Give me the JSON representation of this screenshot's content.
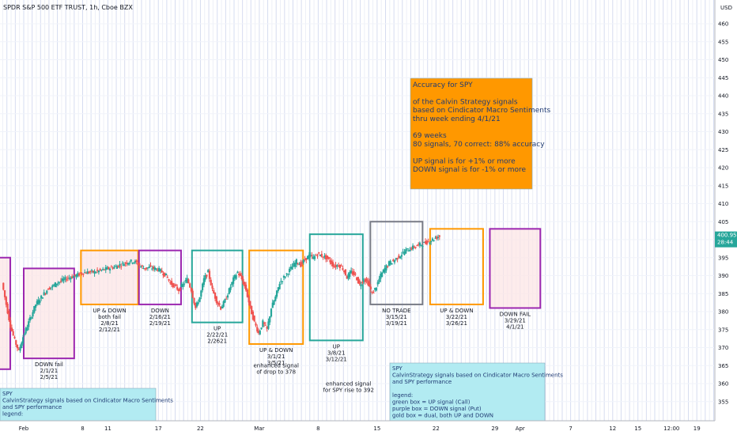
{
  "header": {
    "title": "SPDR S&P 500 ETF TRUST, 1h, Cboe BZX"
  },
  "chart_data": {
    "type": "candlestick",
    "currency": "USD",
    "ylim": [
      350,
      468
    ],
    "price_ticks": [
      355,
      360,
      365,
      370,
      375,
      380,
      385,
      390,
      395,
      400,
      405,
      410,
      415,
      420,
      425,
      430,
      435,
      440,
      445,
      450,
      455,
      460
    ],
    "last_price": "400.95",
    "countdown": "28:44",
    "time_axis": [
      {
        "label": "Feb",
        "day": 0
      },
      {
        "label": "8",
        "day": 7
      },
      {
        "label": "11",
        "day": 10
      },
      {
        "label": "17",
        "day": 16
      },
      {
        "label": "22",
        "day": 21
      },
      {
        "label": "Mar",
        "day": 28
      },
      {
        "label": "8",
        "day": 35
      },
      {
        "label": "15",
        "day": 42
      },
      {
        "label": "22",
        "day": 49
      },
      {
        "label": "29",
        "day": 56
      },
      {
        "label": "Apr",
        "day": 59
      },
      {
        "label": "7",
        "day": 65
      },
      {
        "label": "12",
        "day": 70
      },
      {
        "label": "15",
        "day": 73
      },
      {
        "label": "12:00",
        "day": 77
      },
      {
        "label": "19",
        "day": 80
      }
    ],
    "price_path": [
      {
        "day": -2.5,
        "price": 388
      },
      {
        "day": -2,
        "price": 382
      },
      {
        "day": -1.5,
        "price": 376
      },
      {
        "day": -1,
        "price": 372
      },
      {
        "day": -0.5,
        "price": 369
      },
      {
        "day": 0,
        "price": 373
      },
      {
        "day": 0.5,
        "price": 376
      },
      {
        "day": 1,
        "price": 379
      },
      {
        "day": 1.5,
        "price": 382
      },
      {
        "day": 2,
        "price": 383.5
      },
      {
        "day": 2.5,
        "price": 385
      },
      {
        "day": 3,
        "price": 386.5
      },
      {
        "day": 3.5,
        "price": 387
      },
      {
        "day": 4,
        "price": 388
      },
      {
        "day": 4.5,
        "price": 388.5
      },
      {
        "day": 5,
        "price": 389
      },
      {
        "day": 5.5,
        "price": 389.5
      },
      {
        "day": 6,
        "price": 389.8
      },
      {
        "day": 6.5,
        "price": 390.2
      },
      {
        "day": 7,
        "price": 390.8
      },
      {
        "day": 7.5,
        "price": 390.9
      },
      {
        "day": 8,
        "price": 391
      },
      {
        "day": 8.5,
        "price": 391
      },
      {
        "day": 9,
        "price": 391.3
      },
      {
        "day": 9.5,
        "price": 391.6
      },
      {
        "day": 10,
        "price": 391.9
      },
      {
        "day": 10.5,
        "price": 392.2
      },
      {
        "day": 11,
        "price": 392.5
      },
      {
        "day": 11.5,
        "price": 393
      },
      {
        "day": 12,
        "price": 393.4
      },
      {
        "day": 12.5,
        "price": 393.8
      },
      {
        "day": 13,
        "price": 394
      },
      {
        "day": 13.5,
        "price": 393.6
      },
      {
        "day": 14,
        "price": 392.5
      },
      {
        "day": 14.5,
        "price": 392
      },
      {
        "day": 15,
        "price": 392.3
      },
      {
        "day": 15.5,
        "price": 392
      },
      {
        "day": 16,
        "price": 391.8
      },
      {
        "day": 16.5,
        "price": 391
      },
      {
        "day": 17,
        "price": 390
      },
      {
        "day": 17.5,
        "price": 388
      },
      {
        "day": 18,
        "price": 387
      },
      {
        "day": 18.5,
        "price": 386
      },
      {
        "day": 19,
        "price": 387.5
      },
      {
        "day": 19.5,
        "price": 389
      },
      {
        "day": 20,
        "price": 386
      },
      {
        "day": 20.5,
        "price": 381
      },
      {
        "day": 21,
        "price": 384
      },
      {
        "day": 21.5,
        "price": 389
      },
      {
        "day": 22,
        "price": 391
      },
      {
        "day": 22.5,
        "price": 386
      },
      {
        "day": 23,
        "price": 383
      },
      {
        "day": 23.5,
        "price": 381
      },
      {
        "day": 24,
        "price": 383
      },
      {
        "day": 24.5,
        "price": 386
      },
      {
        "day": 25,
        "price": 389
      },
      {
        "day": 25.5,
        "price": 391
      },
      {
        "day": 26,
        "price": 389
      },
      {
        "day": 26.5,
        "price": 386
      },
      {
        "day": 27,
        "price": 381
      },
      {
        "day": 27.5,
        "price": 377
      },
      {
        "day": 28,
        "price": 374
      },
      {
        "day": 28.5,
        "price": 377
      },
      {
        "day": 29,
        "price": 375
      },
      {
        "day": 29.5,
        "price": 381
      },
      {
        "day": 30,
        "price": 384
      },
      {
        "day": 30.5,
        "price": 388
      },
      {
        "day": 31,
        "price": 389.5
      },
      {
        "day": 31.5,
        "price": 391
      },
      {
        "day": 32,
        "price": 392.5
      },
      {
        "day": 32.5,
        "price": 394
      },
      {
        "day": 33,
        "price": 393
      },
      {
        "day": 33.5,
        "price": 394.5
      },
      {
        "day": 34,
        "price": 395.5
      },
      {
        "day": 34.5,
        "price": 395
      },
      {
        "day": 35,
        "price": 396
      },
      {
        "day": 35.5,
        "price": 395.5
      },
      {
        "day": 36,
        "price": 395
      },
      {
        "day": 36.5,
        "price": 394
      },
      {
        "day": 37,
        "price": 392.5
      },
      {
        "day": 37.5,
        "price": 393
      },
      {
        "day": 38,
        "price": 392
      },
      {
        "day": 38.5,
        "price": 389.5
      },
      {
        "day": 39,
        "price": 391
      },
      {
        "day": 39.5,
        "price": 390
      },
      {
        "day": 40,
        "price": 387.5
      },
      {
        "day": 40.5,
        "price": 389
      },
      {
        "day": 41,
        "price": 388
      },
      {
        "day": 41.5,
        "price": 385
      },
      {
        "day": 42,
        "price": 387
      },
      {
        "day": 42.5,
        "price": 390
      },
      {
        "day": 43,
        "price": 392
      },
      {
        "day": 43.5,
        "price": 393.5
      },
      {
        "day": 44,
        "price": 394
      },
      {
        "day": 44.5,
        "price": 395
      },
      {
        "day": 45,
        "price": 396
      },
      {
        "day": 45.5,
        "price": 397
      },
      {
        "day": 46,
        "price": 397.5
      },
      {
        "day": 46.5,
        "price": 398
      },
      {
        "day": 47,
        "price": 398.5
      },
      {
        "day": 47.5,
        "price": 398.8
      },
      {
        "day": 48,
        "price": 399.3
      },
      {
        "day": 48.5,
        "price": 399.8
      },
      {
        "day": 49,
        "price": 400.5
      },
      {
        "day": 49.5,
        "price": 400.95
      }
    ],
    "boxes": [
      {
        "color": "#9c27b0",
        "fill": "#fce4e4",
        "d0": -4,
        "d1": -1.6,
        "pHi": 395,
        "pLo": 364,
        "label": []
      },
      {
        "color": "#9c27b0",
        "fill": "#fce4e4",
        "d0": 0.0,
        "d1": 6.0,
        "pHi": 392,
        "pLo": 367,
        "label": [
          "DOWN  fail",
          "2/1/21",
          "2/5/21"
        ]
      },
      {
        "color": "#ff9800",
        "fill": "#fce4e4",
        "d0": 6.8,
        "d1": 13.6,
        "pHi": 397,
        "pLo": 382,
        "label": [
          "UP & DOWN",
          "both fail",
          "2/8/21",
          "2/12/21"
        ]
      },
      {
        "color": "#9c27b0",
        "fill": "none",
        "d0": 13.7,
        "d1": 18.7,
        "pHi": 397,
        "pLo": 382,
        "label": [
          "DOWN",
          "2/16/21",
          "2/19/21"
        ]
      },
      {
        "color": "#26a69a",
        "fill": "none",
        "d0": 20.0,
        "d1": 26.0,
        "pHi": 397,
        "pLo": 377,
        "label": [
          "UP",
          "2/22/21",
          "2/2621"
        ]
      },
      {
        "color": "#ff9800",
        "fill": "none",
        "d0": 26.8,
        "d1": 33.2,
        "pHi": 397,
        "pLo": 371,
        "label": [
          "UP & DOWN",
          "3/1/21",
          "3/5/21"
        ]
      },
      {
        "color": "#26a69a",
        "fill": "none",
        "d0": 34.0,
        "d1": 40.3,
        "pHi": 401.5,
        "pLo": 372,
        "label": [
          "UP",
          "3/8/21",
          "3/12/21"
        ]
      },
      {
        "color": "#787b86",
        "fill": "none",
        "d0": 41.2,
        "d1": 47.4,
        "pHi": 405,
        "pLo": 382,
        "label": [
          "NO TRADE",
          "3/15/21",
          "3/19/21"
        ]
      },
      {
        "color": "#ff9800",
        "fill": "none",
        "d0": 48.3,
        "d1": 54.6,
        "pHi": 403,
        "pLo": 382,
        "label": [
          "UP & DOWN",
          "3/22/21",
          "3/26/21"
        ]
      },
      {
        "color": "#9c27b0",
        "fill": "#fce4e4",
        "d0": 55.4,
        "d1": 61.4,
        "pHi": 403,
        "pLo": 381,
        "label": [
          "DOWN  FAIL",
          "3/29/21",
          "4/1/21"
        ]
      }
    ],
    "annotations": [
      {
        "day": 30.0,
        "price": 364.5,
        "lines": [
          "enhanced signal",
          "of drop to 378"
        ]
      },
      {
        "day": 38.6,
        "price": 359.5,
        "lines": [
          "enhanced signal",
          "for SPY rise to 392"
        ]
      }
    ],
    "info_box": {
      "lines": [
        "Accuracy for SPY",
        "",
        "of the Calvin Strategy signals",
        "based on Cindicator Macro Sentiments",
        "thru week ending 4/1/21",
        "",
        "69 weeks",
        "80 signals, 70 correct: 88% accuracy",
        "",
        "UP signal is for +1% or more",
        "DOWN signal is for -1% or more"
      ],
      "bg": "#ff9800"
    },
    "note_left": {
      "lines": [
        "SPY",
        "CalvinStrategy signals based on Cindicator Macro Sentiments",
        "and SPY performance",
        "legend:"
      ],
      "bg": "#b2ebf2"
    },
    "note_right": {
      "lines": [
        "SPY",
        "CalvinStrategy signals based on Cindicator Macro Sentiments",
        "and SPY performance",
        "",
        "legend:",
        "green box = UP signal (Call)",
        "purple box = DOWN signal (Put)",
        "gold box = dual, both UP and DOWN"
      ],
      "bg": "#b2ebf2"
    },
    "colors": {
      "up": "#26a69a",
      "down": "#ef5350",
      "last_price_bg": "#26a69a"
    }
  }
}
